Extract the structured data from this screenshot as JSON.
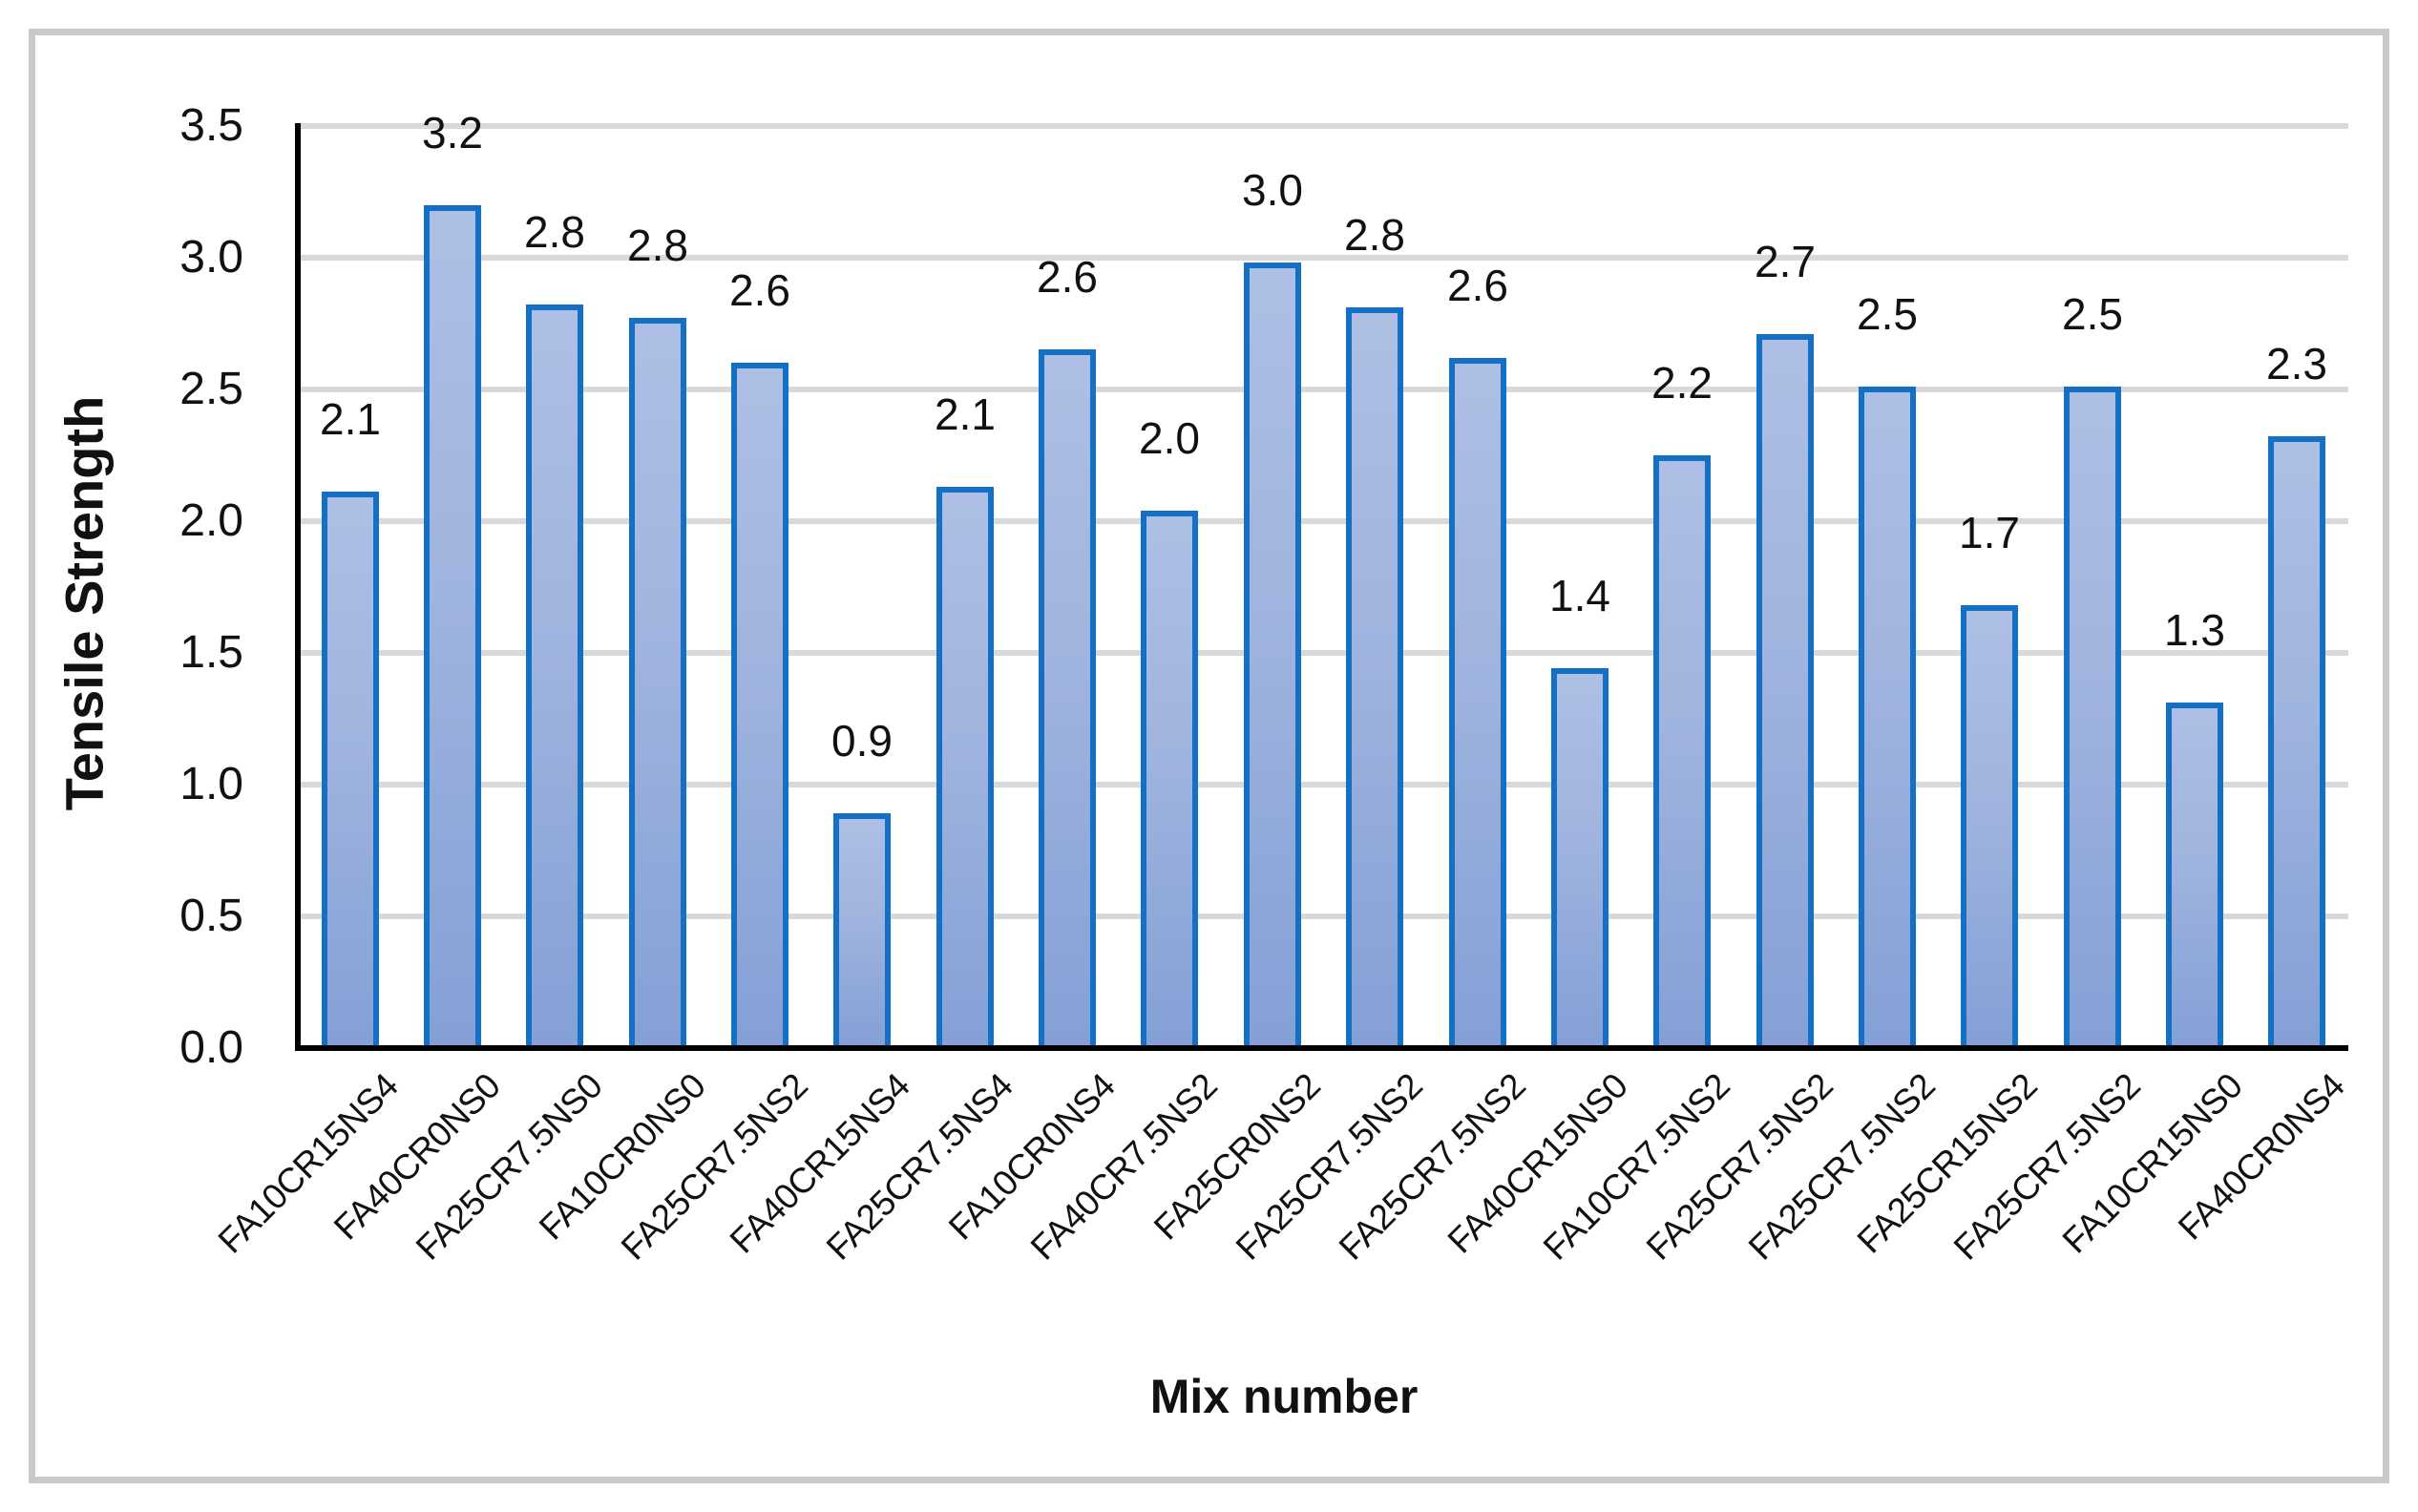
{
  "chart_data": {
    "type": "bar",
    "title": "",
    "xlabel": "Mix number",
    "ylabel": "Tensile Strength",
    "categories": [
      "FA10CR15NS4",
      "FA40CR0NS0",
      "FA25CR7.5NS0",
      "FA10CR0NS0",
      "FA25CR7.5NS2",
      "FA40CR15NS4",
      "FA25CR7.5NS4",
      "FA10CR0NS4",
      "FA40CR7.5NS2",
      "FA25CR0NS2",
      "FA25CR7.5NS2",
      "FA25CR7.5NS2",
      "FA40CR15NS0",
      "FA10CR7.5NS2",
      "FA25CR7.5NS2",
      "FA25CR7.5NS2",
      "FA25CR15NS2",
      "FA25CR7.5NS2",
      "FA10CR15NS0",
      "FA40CR0NS4"
    ],
    "values": [
      2.1,
      3.2,
      2.8,
      2.8,
      2.6,
      0.9,
      2.1,
      2.6,
      2.0,
      3.0,
      2.8,
      2.6,
      1.4,
      2.2,
      2.7,
      2.5,
      1.7,
      2.5,
      1.3,
      2.3
    ],
    "value_labels": [
      "2.1",
      "3.2",
      "2.8",
      "2.8",
      "2.6",
      "0.9",
      "2.1",
      "2.6",
      "2.0",
      "3.0",
      "2.8",
      "2.6",
      "1.4",
      "2.2",
      "2.7",
      "2.5",
      "1.7",
      "2.5",
      "1.3",
      "2.3"
    ],
    "bar_heights": [
      2.1,
      3.19,
      2.81,
      2.76,
      2.59,
      0.88,
      2.12,
      2.64,
      2.03,
      2.97,
      2.8,
      2.61,
      1.43,
      2.24,
      2.7,
      2.5,
      1.67,
      2.5,
      1.3,
      2.31
    ],
    "yticks": [
      "0.0",
      "0.5",
      "1.0",
      "1.5",
      "2.0",
      "2.5",
      "3.0",
      "3.5"
    ],
    "ylim": [
      0,
      3.5
    ],
    "ytick_step": 0.5,
    "grid": "horizontal",
    "legend": "none",
    "colors": {
      "bar_fill_top": "#AEBFE5",
      "bar_fill_mid": "#9DB2DD",
      "bar_fill_bottom": "#84A0D6",
      "bar_border": "#1470C4",
      "gridline": "#D9D9D9",
      "axis": "#000000",
      "frame_border": "#C9C9C9",
      "text": "#111111",
      "background": "#FFFFFF"
    }
  }
}
